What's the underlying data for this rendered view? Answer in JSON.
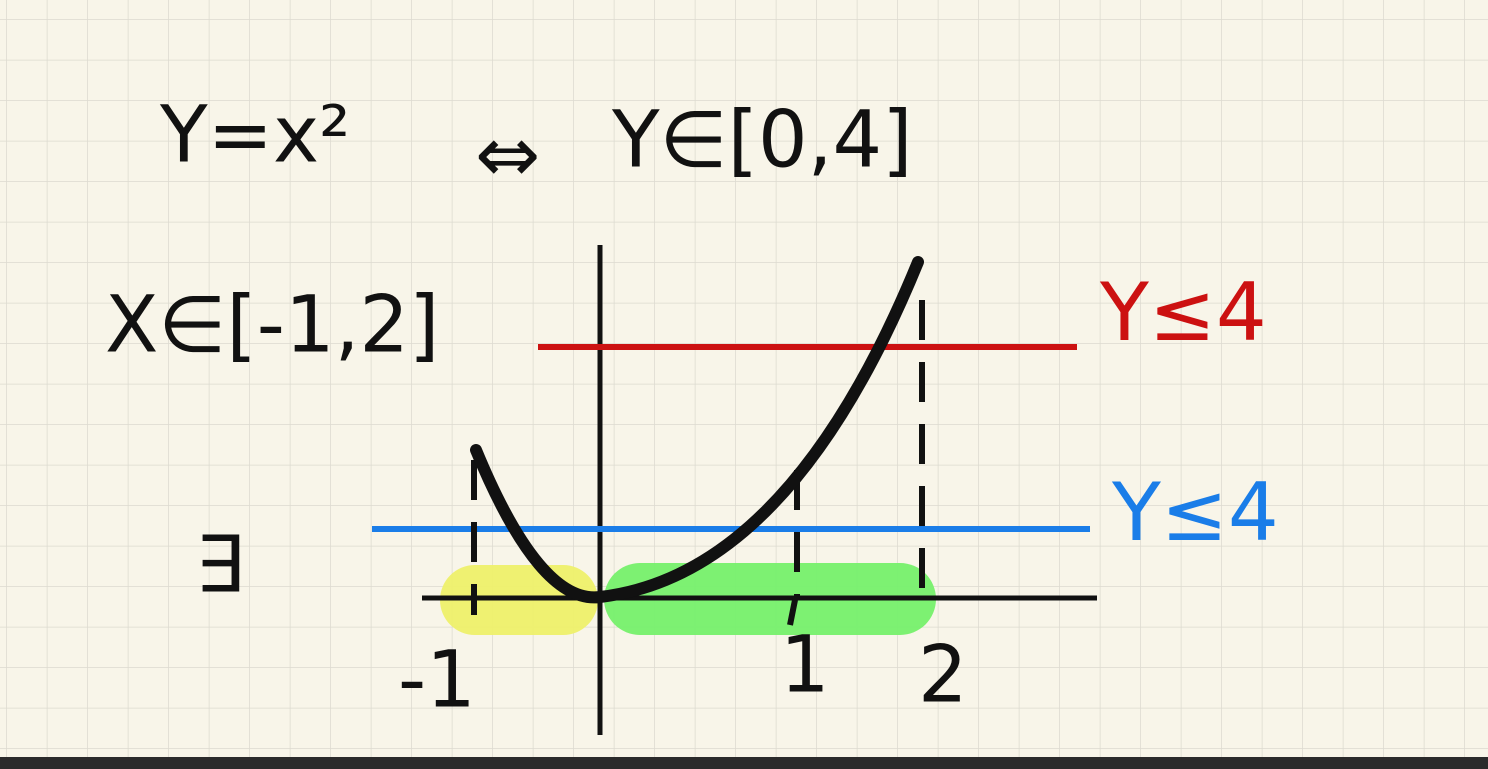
{
  "note": {
    "equation": "Y=x²",
    "equivalence": "⇔",
    "range": "Y∈[0,4]",
    "domain": "X∈[-1,2]",
    "exists": "∃",
    "red_label": "Y≤4",
    "blue_label": "Y≤4",
    "x_labels": [
      "-1",
      "1",
      "2"
    ]
  }
}
